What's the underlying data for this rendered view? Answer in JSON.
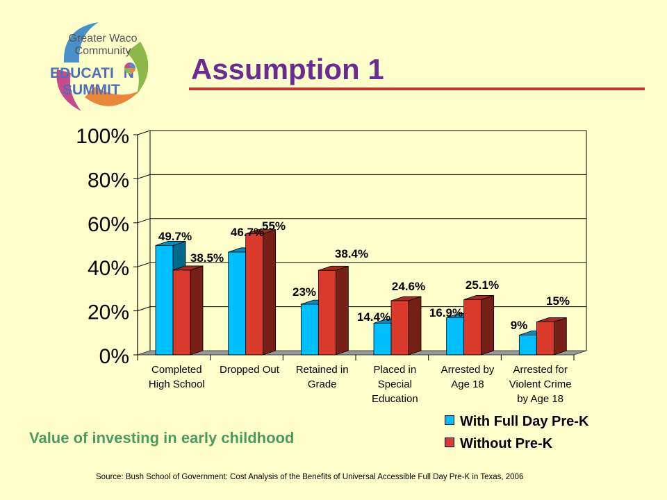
{
  "slide": {
    "title": "Assumption 1",
    "subtitle": "Value of investing in early childhood",
    "source": "Source: Bush School of Government: Cost Analysis of the Benefits of Universal Accessible Full Day Pre-K in Texas, 2006"
  },
  "logo": {
    "line1": "Greater Waco",
    "line2": "Community",
    "line3a": "EDUCATI",
    "line3b": "N",
    "line4": "SUMMIT",
    "colors": [
      "#4A90C8",
      "#E8873A",
      "#8CB84A",
      "#C84A8C"
    ]
  },
  "chart_data": {
    "type": "bar",
    "categories": [
      [
        "Completed",
        "High School"
      ],
      [
        "Dropped Out"
      ],
      [
        "Retained in",
        "Grade"
      ],
      [
        "Placed in",
        "Special",
        "Education"
      ],
      [
        "Arrested by",
        "Age 18"
      ],
      [
        "Arrested for",
        "Violent Crime",
        "by Age 18"
      ]
    ],
    "series": [
      {
        "name": "With Full Day Pre-K",
        "values": [
          49.7,
          46.7,
          23,
          14.4,
          16.9,
          9
        ],
        "labels": [
          "49.7%",
          "46.7%",
          "23%",
          "14.4%",
          "16.9%",
          "9%"
        ],
        "color": "#00BFFF"
      },
      {
        "name": "Without Pre-K",
        "values": [
          38.5,
          55,
          38.4,
          24.6,
          25.1,
          15
        ],
        "labels": [
          "38.5%",
          "55%",
          "38.4%",
          "24.6%",
          "25.1%",
          "15%"
        ],
        "color": "#D93A2B"
      }
    ],
    "yticks": [
      "0%",
      "20%",
      "40%",
      "60%",
      "80%",
      "100%"
    ],
    "ylim": [
      0,
      100
    ],
    "grid": true,
    "legend": "bottom-right"
  }
}
